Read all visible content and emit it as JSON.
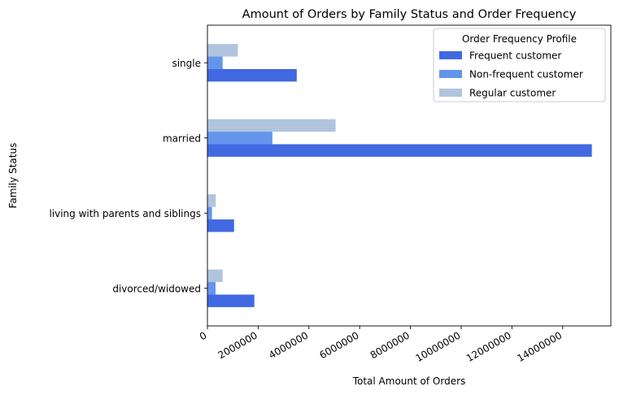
{
  "chart_data": {
    "type": "bar",
    "orientation": "horizontal",
    "title": "Amount of Orders by Family Status and Order Frequency",
    "xlabel": "Total Amount of Orders",
    "ylabel": "Family Status",
    "categories": [
      "divorced/widowed",
      "living with parents and siblings",
      "married",
      "single"
    ],
    "series": [
      {
        "name": "Frequent customer",
        "color": "#4169e1",
        "values": [
          1850000,
          1050000,
          15150000,
          3520000
        ]
      },
      {
        "name": "Non-frequent customer",
        "color": "#6495ed",
        "values": [
          320000,
          180000,
          2560000,
          600000
        ]
      },
      {
        "name": "Regular customer",
        "color": "#b0c4de",
        "values": [
          600000,
          330000,
          5050000,
          1200000
        ]
      }
    ],
    "xlim": [
      0,
      15900000
    ],
    "xticks": [
      0,
      2000000,
      4000000,
      6000000,
      8000000,
      10000000,
      12000000,
      14000000
    ],
    "xtick_labels": [
      "0",
      "2000000",
      "4000000",
      "6000000",
      "8000000",
      "10000000",
      "12000000",
      "14000000"
    ],
    "grid": false,
    "legend": {
      "title": "Order Frequency Profile",
      "placement": "top-right"
    }
  }
}
